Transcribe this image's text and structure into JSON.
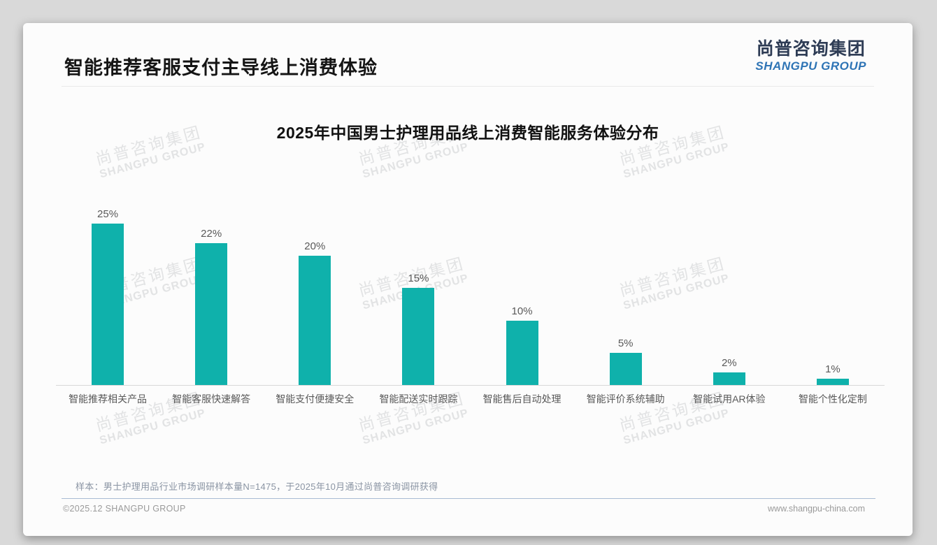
{
  "header": {
    "title": "智能推荐客服支付主导线上消费体验"
  },
  "logo": {
    "cn": "尚普咨询集团",
    "en": "SHANGPU GROUP"
  },
  "watermark": {
    "line1": "尚普咨询集团",
    "line2": "SHANGPU GROUP"
  },
  "chart_data": {
    "type": "bar",
    "title": "2025年中国男士护理用品线上消费智能服务体验分布",
    "categories": [
      "智能推荐相关产品",
      "智能客服快速解答",
      "智能支付便捷安全",
      "智能配送实时跟踪",
      "智能售后自动处理",
      "智能评价系统辅助",
      "智能试用AR体验",
      "智能个性化定制"
    ],
    "values": [
      25,
      22,
      20,
      15,
      10,
      5,
      2,
      1
    ],
    "unit": "%",
    "bar_color": "#0fb1ab",
    "label_color": "#595959",
    "xlabel": "",
    "ylabel": "",
    "ylim": [
      0,
      27
    ],
    "grid": false,
    "legend": false
  },
  "footnote": "样本：男士护理用品行业市场调研样本量N=1475，于2025年10月通过尚普咨询调研获得",
  "footer": {
    "left": "©2025.12 SHANGPU GROUP",
    "right": "www.shangpu-china.com"
  }
}
